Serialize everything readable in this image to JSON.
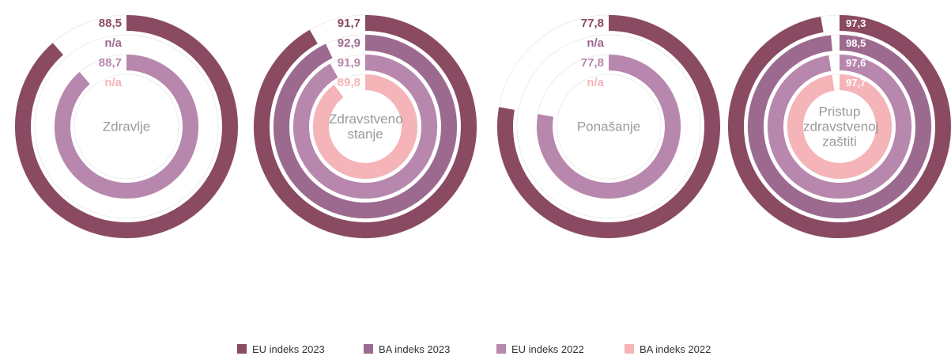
{
  "chart_data": [
    {
      "type": "radial_bar",
      "title": "Zdravlje",
      "xlim": [
        0,
        100
      ],
      "values": [
        88.5,
        null,
        88.7,
        null
      ],
      "value_labels": [
        "88,5",
        "n/a",
        "88,7",
        "n/a"
      ]
    },
    {
      "type": "radial_bar",
      "title": "Zdravstveno stanje",
      "xlim": [
        0,
        100
      ],
      "values": [
        91.7,
        92.9,
        91.9,
        89.8
      ],
      "value_labels": [
        "91,7",
        "92,9",
        "91,9",
        "89,8"
      ]
    },
    {
      "type": "radial_bar",
      "title": "Ponašanje",
      "xlim": [
        0,
        100
      ],
      "values": [
        77.8,
        null,
        77.8,
        null
      ],
      "value_labels": [
        "77,8",
        "n/a",
        "77,8",
        "n/a"
      ]
    },
    {
      "type": "radial_bar",
      "title": "Pristup zdravstvenoj zaštiti",
      "xlim": [
        0,
        100
      ],
      "values": [
        97.3,
        98.5,
        97.6,
        97.7
      ],
      "value_labels": [
        "97,3",
        "98,5",
        "97,6",
        "97,7"
      ]
    }
  ],
  "legend": [
    {
      "name": "EU indeks 2023",
      "color": "#8a4a62"
    },
    {
      "name": "BA indeks 2023",
      "color": "#9c6a8f"
    },
    {
      "name": "EU indeks 2022",
      "color": "#b887ad"
    },
    {
      "name": "BA indeks 2022",
      "color": "#f5b4b8"
    }
  ]
}
